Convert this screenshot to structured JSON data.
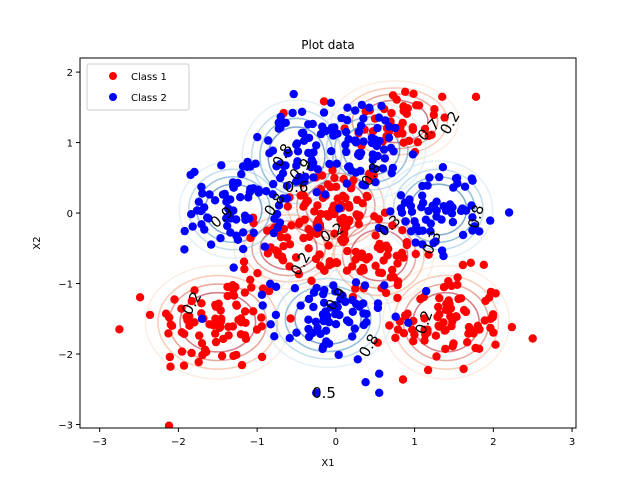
{
  "chart_data": {
    "type": "scatter",
    "title": "Plot data",
    "xlabel": "X1",
    "ylabel": "X2",
    "xlim": [
      -3.25,
      3.05
    ],
    "ylim": [
      -3.05,
      2.2
    ],
    "xticks": [
      -3,
      -2,
      -1,
      0,
      1,
      2,
      3
    ],
    "yticks": [
      -3,
      -2,
      -1,
      0,
      1,
      2
    ],
    "grid": false,
    "legend_position": "upper-left",
    "series": [
      {
        "name": "Class 1",
        "color": "#ff0000",
        "clusters": [
          {
            "cx": 0.0,
            "cy": 0.1,
            "sx": 0.32,
            "sy": 0.3,
            "n": 70
          },
          {
            "cx": 0.75,
            "cy": 1.3,
            "sx": 0.35,
            "sy": 0.25,
            "n": 45
          },
          {
            "cx": -1.5,
            "cy": -1.55,
            "sx": 0.4,
            "sy": 0.35,
            "n": 80
          },
          {
            "cx": 1.4,
            "cy": -1.55,
            "sx": 0.35,
            "sy": 0.35,
            "n": 85
          },
          {
            "cx": 0.55,
            "cy": -0.6,
            "sx": 0.3,
            "sy": 0.3,
            "n": 55
          },
          {
            "cx": -0.6,
            "cy": -0.5,
            "sx": 0.3,
            "sy": 0.25,
            "n": 45
          }
        ],
        "points": [
          [
            -2.75,
            -1.65
          ],
          [
            2.5,
            -1.78
          ],
          [
            -2.1,
            -2.18
          ],
          [
            1.78,
            1.65
          ],
          [
            1.35,
            1.65
          ],
          [
            0.88,
            1.72
          ]
        ]
      },
      {
        "name": "Class 2",
        "color": "#0000ff",
        "clusters": [
          {
            "cx": -0.5,
            "cy": 0.8,
            "sx": 0.3,
            "sy": 0.35,
            "n": 70
          },
          {
            "cx": 0.45,
            "cy": 0.9,
            "sx": 0.3,
            "sy": 0.3,
            "n": 55
          },
          {
            "cx": -1.3,
            "cy": 0.05,
            "sx": 0.3,
            "sy": 0.3,
            "n": 65
          },
          {
            "cx": 1.3,
            "cy": 0.05,
            "sx": 0.3,
            "sy": 0.3,
            "n": 65
          },
          {
            "cx": -0.1,
            "cy": -1.5,
            "sx": 0.35,
            "sy": 0.3,
            "n": 70
          }
        ],
        "points": [
          [
            -0.55,
            1.42
          ],
          [
            0.58,
            1.52
          ],
          [
            0.55,
            -2.55
          ],
          [
            -0.25,
            -2.55
          ],
          [
            0.55,
            -2.28
          ],
          [
            -1.7,
            -1.5
          ]
        ]
      }
    ],
    "contours": {
      "colormap": "RdBu",
      "labels": [
        {
          "text": "0.8",
          "x": -0.68,
          "y": 0.82,
          "rotate": -60
        },
        {
          "text": "0.9",
          "x": -0.45,
          "y": 0.62,
          "rotate": -45
        },
        {
          "text": "0.6",
          "x": -0.5,
          "y": 0.37,
          "rotate": 0
        },
        {
          "text": "0.8",
          "x": 0.45,
          "y": 0.55,
          "rotate": -60
        },
        {
          "text": "0.7",
          "x": 1.18,
          "y": 1.18,
          "rotate": -45
        },
        {
          "text": "0.2",
          "x": 1.45,
          "y": 1.28,
          "rotate": -60
        },
        {
          "text": "0.9",
          "x": -1.45,
          "y": -0.06,
          "rotate": -40
        },
        {
          "text": "0.8",
          "x": -0.78,
          "y": 0.12,
          "rotate": -55
        },
        {
          "text": "0.2",
          "x": -0.05,
          "y": -0.28,
          "rotate": -30
        },
        {
          "text": "0.2",
          "x": -0.45,
          "y": -0.72,
          "rotate": -60
        },
        {
          "text": "0.3",
          "x": 0.68,
          "y": -0.18,
          "rotate": -40
        },
        {
          "text": "0.3",
          "x": 1.22,
          "y": -0.42,
          "rotate": -65
        },
        {
          "text": "0.8",
          "x": 1.78,
          "y": -0.05,
          "rotate": -75
        },
        {
          "text": "0.2",
          "x": -1.83,
          "y": -1.28,
          "rotate": -60
        },
        {
          "text": "0.9",
          "x": 0.0,
          "y": -1.22,
          "rotate": -55
        },
        {
          "text": "0.8",
          "x": 0.42,
          "y": -1.88,
          "rotate": -60
        },
        {
          "text": "0.2",
          "x": 1.12,
          "y": -1.55,
          "rotate": -70
        },
        {
          "text": "0.5",
          "x": -0.15,
          "y": -2.55,
          "rotate": 0
        }
      ]
    }
  },
  "legend": {
    "items": [
      {
        "label": "Class 1",
        "color": "#ff0000"
      },
      {
        "label": "Class 2",
        "color": "#0000ff"
      }
    ]
  }
}
